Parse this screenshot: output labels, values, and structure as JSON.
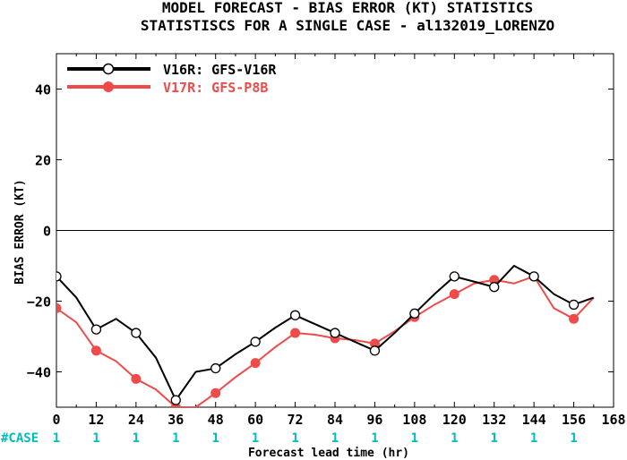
{
  "colors": {
    "series1": "#000000",
    "series2": "#ef4b4b",
    "case_text": "#00bcbc"
  },
  "chart_data": {
    "type": "line",
    "title": "MODEL FORECAST - BIAS ERROR (KT) STATISTICS",
    "subtitle": "STATISTISCS FOR A SINGLE CASE - al132019_LORENZO",
    "xlabel": "Forecast lead time (hr)",
    "ylabel": "BIAS ERROR (KT)",
    "xlim": [
      0,
      168
    ],
    "ylim": [
      -50,
      50
    ],
    "xticks": [
      0,
      12,
      24,
      36,
      48,
      60,
      72,
      84,
      96,
      108,
      120,
      132,
      144,
      156,
      168
    ],
    "yticks": [
      -40,
      -20,
      0,
      20,
      40
    ],
    "zero_line": true,
    "legend_position": "top-left",
    "series": [
      {
        "name": "V16R: GFS-V16R",
        "color": "#000000",
        "marker": "open-circle",
        "x": [
          0,
          6,
          12,
          18,
          24,
          30,
          36,
          42,
          48,
          54,
          60,
          66,
          72,
          78,
          84,
          90,
          96,
          102,
          108,
          114,
          120,
          126,
          132,
          138,
          144,
          150,
          156,
          162
        ],
        "y": [
          -13,
          -19,
          -28,
          -25,
          -29,
          -36,
          -48,
          -40,
          -39,
          -35,
          -31.5,
          -27.5,
          -24,
          -26.5,
          -29,
          -31.5,
          -34,
          -29,
          -23.5,
          -18,
          -13,
          -14.5,
          -16,
          -10,
          -13,
          -18,
          -21,
          -19
        ],
        "marked_x": [
          0,
          12,
          24,
          36,
          48,
          60,
          72,
          84,
          96,
          108,
          120,
          132,
          144,
          156
        ]
      },
      {
        "name": "V17R: GFS-P8B",
        "color": "#ef4b4b",
        "marker": "filled-circle",
        "x": [
          0,
          6,
          12,
          18,
          24,
          30,
          36,
          42,
          48,
          54,
          60,
          66,
          72,
          78,
          84,
          90,
          96,
          102,
          108,
          114,
          120,
          126,
          132,
          138,
          144,
          150,
          156,
          162
        ],
        "y": [
          -22,
          -26,
          -34,
          -37,
          -42,
          -45,
          -50,
          -50,
          -46,
          -41.5,
          -37.5,
          -33,
          -29,
          -29.5,
          -30.5,
          -31,
          -32,
          -28.5,
          -24.5,
          -21,
          -18,
          -15,
          -14,
          -15,
          -13,
          -22,
          -25,
          -19
        ],
        "marked_x": [
          0,
          12,
          24,
          36,
          48,
          60,
          72,
          84,
          96,
          108,
          120,
          132,
          144,
          156
        ]
      }
    ],
    "case_label": "#CASE",
    "case_counts": [
      "1",
      "1",
      "1",
      "1",
      "1",
      "1",
      "1",
      "1",
      "1",
      "1",
      "1",
      "1",
      "1",
      "1"
    ]
  }
}
